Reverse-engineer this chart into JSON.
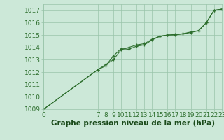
{
  "title": "Graphe pression niveau de la mer (hPa)",
  "background_color": "#cce8d8",
  "grid_color": "#99c4aa",
  "line_color": "#2d6e2d",
  "marker_color": "#2d6e2d",
  "xlim": [
    0,
    23
  ],
  "ylim": [
    1009,
    1017.5
  ],
  "yticks": [
    1009,
    1010,
    1011,
    1012,
    1013,
    1014,
    1015,
    1016,
    1017
  ],
  "xticks": [
    0,
    7,
    8,
    9,
    10,
    11,
    12,
    13,
    14,
    15,
    16,
    17,
    18,
    19,
    20,
    21,
    22,
    23
  ],
  "x_data": [
    0,
    7,
    8,
    9,
    10,
    11,
    12,
    13,
    14,
    15,
    16,
    17,
    18,
    19,
    20,
    21,
    22,
    23
  ],
  "y_data": [
    1009.0,
    1012.2,
    1012.5,
    1013.3,
    1013.9,
    1013.85,
    1014.1,
    1014.2,
    1014.6,
    1014.9,
    1015.0,
    1015.0,
    1015.1,
    1015.25,
    1015.35,
    1016.0,
    1017.0,
    1017.1
  ],
  "y_data2": [
    1009.0,
    1012.2,
    1012.6,
    1013.0,
    1013.8,
    1014.0,
    1014.2,
    1014.3,
    1014.65,
    1014.9,
    1015.0,
    1015.05,
    1015.1,
    1015.2,
    1015.35,
    1016.0,
    1017.0,
    1017.1
  ],
  "tick_fontsize": 6.5,
  "title_fontsize": 7.5,
  "title_color": "#1a4a1a",
  "tick_color": "#2d6e2d"
}
